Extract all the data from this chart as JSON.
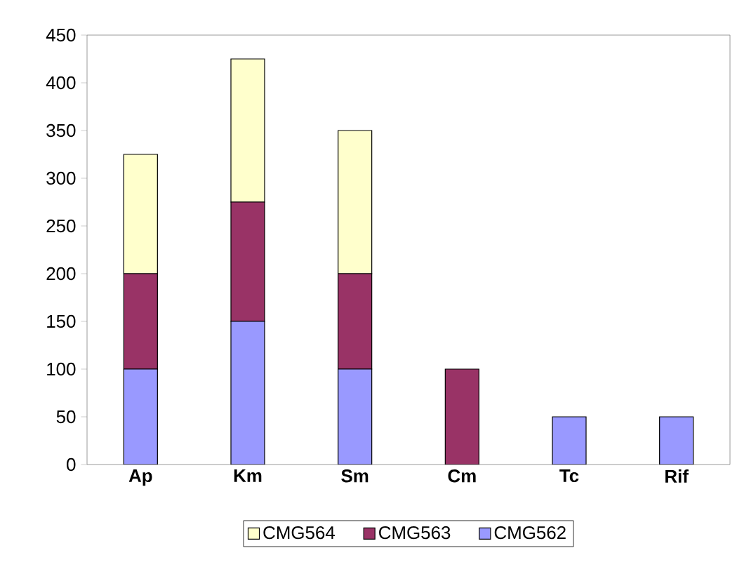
{
  "chart_data": {
    "type": "bar",
    "stacked": true,
    "categories": [
      "Ap",
      "Km",
      "Sm",
      "Cm",
      "Tc",
      "Rif"
    ],
    "series": [
      {
        "name": "CMG562",
        "color": "#9999ff",
        "values": [
          100,
          150,
          100,
          0,
          50,
          50
        ]
      },
      {
        "name": "CMG563",
        "color": "#993366",
        "values": [
          100,
          125,
          100,
          100,
          0,
          0
        ]
      },
      {
        "name": "CMG564",
        "color": "#ffffcc",
        "values": [
          125,
          150,
          150,
          0,
          0,
          0
        ]
      }
    ],
    "ylim": [
      0,
      450
    ],
    "yticks": [
      0,
      50,
      100,
      150,
      200,
      250,
      300,
      350,
      400,
      450
    ],
    "grid": false,
    "legend": "bottom"
  }
}
